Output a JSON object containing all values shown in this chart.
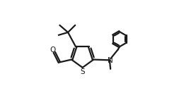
{
  "bg_color": "#ffffff",
  "line_color": "#1a1a1a",
  "line_width": 1.6,
  "fig_width": 2.77,
  "fig_height": 1.59,
  "dpi": 100,
  "S_label": "S",
  "N_label": "N",
  "O_label": "O"
}
